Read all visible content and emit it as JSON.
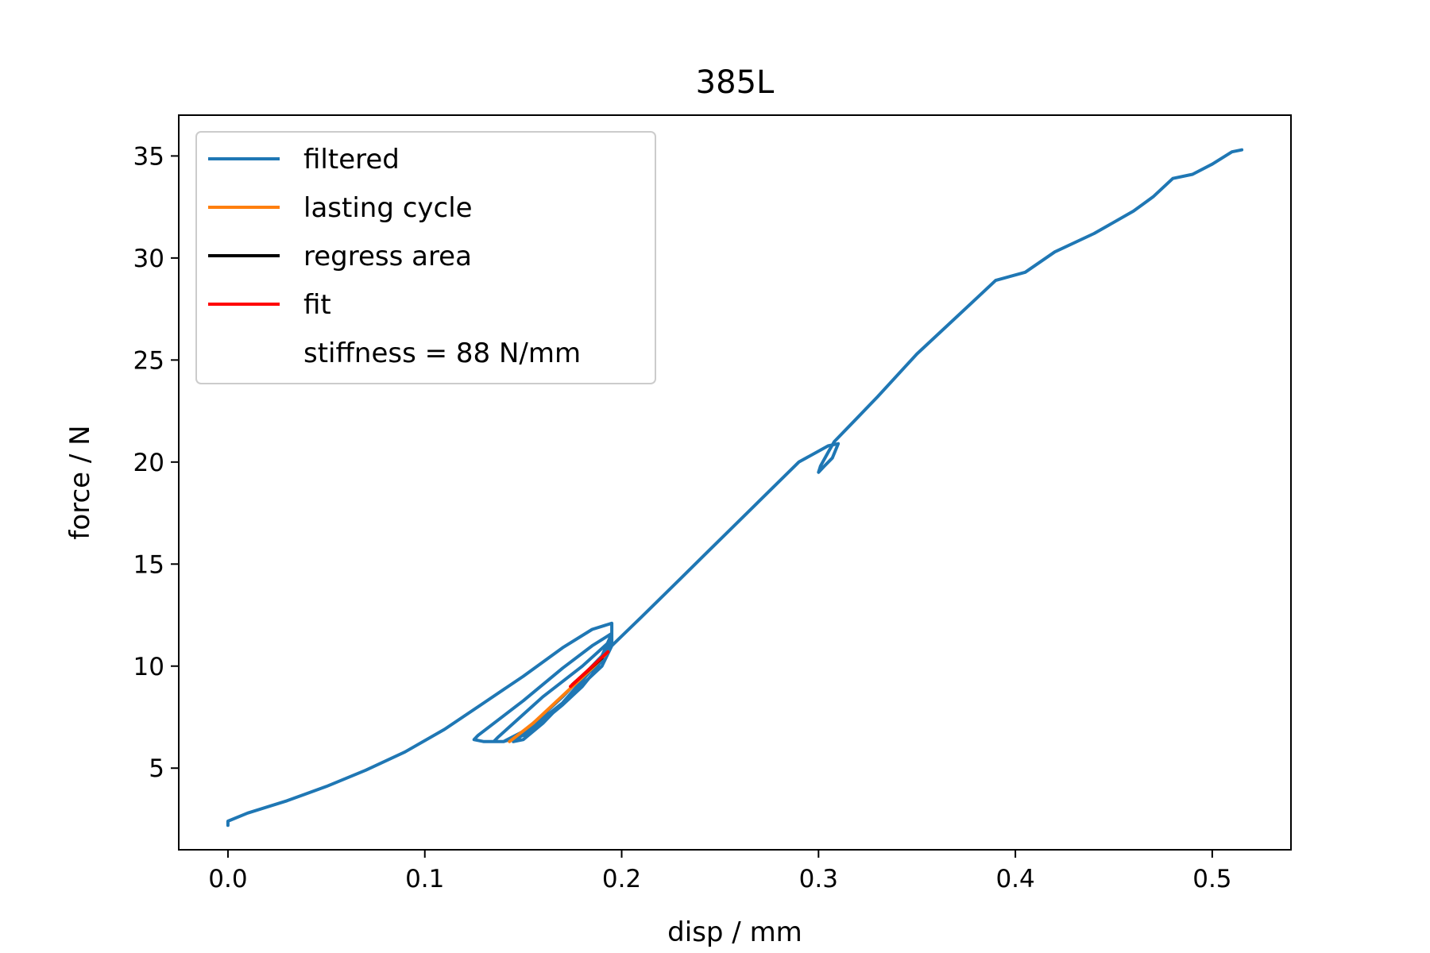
{
  "chart_data": {
    "type": "line",
    "title": "385L",
    "xlabel": "disp / mm",
    "ylabel": "force / N",
    "xlim": [
      -0.025,
      0.54
    ],
    "ylim": [
      1.0,
      37.0
    ],
    "xticks": [
      0.0,
      0.1,
      0.2,
      0.3,
      0.4,
      0.5
    ],
    "xtick_labels": [
      "0.0",
      "0.1",
      "0.2",
      "0.3",
      "0.4",
      "0.5"
    ],
    "yticks": [
      5,
      10,
      15,
      20,
      25,
      30,
      35
    ],
    "ytick_labels": [
      "5",
      "10",
      "15",
      "20",
      "25",
      "30",
      "35"
    ],
    "grid": false,
    "legend_position": "top-left",
    "legend": [
      {
        "label": "filtered",
        "color": "#1f77b4"
      },
      {
        "label": "lasting cycle",
        "color": "#ff7f0e"
      },
      {
        "label": "regress area",
        "color": "#000000"
      },
      {
        "label": "fit",
        "color": "#ff0000"
      },
      {
        "label": "stiffness = 88 N/mm",
        "color": "none"
      }
    ],
    "series": [
      {
        "name": "filtered",
        "color": "#1f77b4",
        "x": [
          0.0,
          0.0,
          0.01,
          0.03,
          0.05,
          0.07,
          0.09,
          0.11,
          0.13,
          0.15,
          0.17,
          0.185,
          0.195,
          0.195,
          0.19,
          0.185,
          0.18,
          0.17,
          0.16,
          0.15,
          0.14,
          0.13,
          0.125,
          0.127,
          0.15,
          0.17,
          0.185,
          0.195,
          0.19,
          0.18,
          0.17,
          0.16,
          0.15,
          0.14,
          0.135,
          0.137,
          0.16,
          0.18,
          0.195,
          0.19,
          0.18,
          0.17,
          0.16,
          0.15,
          0.145,
          0.148,
          0.17,
          0.19,
          0.195,
          0.21,
          0.23,
          0.25,
          0.27,
          0.29,
          0.305,
          0.31,
          0.307,
          0.303,
          0.3,
          0.301,
          0.305,
          0.308,
          0.32,
          0.33,
          0.35,
          0.37,
          0.39,
          0.405,
          0.42,
          0.44,
          0.46,
          0.47,
          0.48,
          0.49,
          0.5,
          0.51,
          0.515
        ],
        "y": [
          2.2,
          2.4,
          2.8,
          3.4,
          4.1,
          4.9,
          5.8,
          6.9,
          8.2,
          9.5,
          10.9,
          11.8,
          12.1,
          11.2,
          10.3,
          9.6,
          9.0,
          8.1,
          7.3,
          6.6,
          6.3,
          6.3,
          6.4,
          6.6,
          8.3,
          9.9,
          11.0,
          11.6,
          10.5,
          9.5,
          8.5,
          7.6,
          6.8,
          6.3,
          6.3,
          6.5,
          8.5,
          10.0,
          11.3,
          10.4,
          9.3,
          8.2,
          7.2,
          6.4,
          6.3,
          6.5,
          8.2,
          10.0,
          11.0,
          12.4,
          14.3,
          16.2,
          18.1,
          20.0,
          20.8,
          20.9,
          20.2,
          19.8,
          19.5,
          19.8,
          20.5,
          21.0,
          22.2,
          23.2,
          25.3,
          27.1,
          28.9,
          29.3,
          30.3,
          31.2,
          32.3,
          33.0,
          33.9,
          34.1,
          34.6,
          35.2,
          35.3
        ]
      },
      {
        "name": "lasting cycle",
        "color": "#ff7f0e",
        "x": [
          0.143,
          0.155,
          0.165,
          0.175,
          0.185,
          0.193
        ],
        "y": [
          6.3,
          7.2,
          8.1,
          9.0,
          9.9,
          10.7
        ]
      },
      {
        "name": "regress area",
        "color": "#000000",
        "x": [
          0.175,
          0.19
        ],
        "y": [
          9.1,
          10.4
        ]
      },
      {
        "name": "fit",
        "color": "#ff0000",
        "x": [
          0.174,
          0.193
        ],
        "y": [
          9.0,
          10.7
        ]
      }
    ]
  }
}
